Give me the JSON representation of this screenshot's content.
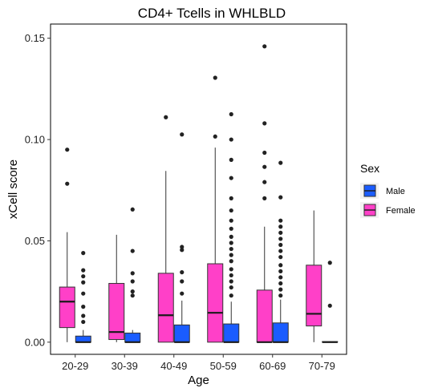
{
  "chart_data": {
    "type": "boxplot",
    "title": "CD4+ Tcells in WHLBLD",
    "xlabel": "Age",
    "ylabel": "xCell score",
    "categories": [
      "20-29",
      "30-39",
      "40-49",
      "50-59",
      "60-69",
      "70-79"
    ],
    "ylim": [
      -0.006,
      0.157
    ],
    "yticks": [
      0.0,
      0.05,
      0.1,
      0.15
    ],
    "ytick_labels": [
      "0.00",
      "0.05",
      "0.10",
      "0.15"
    ],
    "grid": false,
    "legend": {
      "title": "Sex",
      "placement": "right",
      "entries": [
        {
          "label": "Male",
          "color": "#1A5CFF"
        },
        {
          "label": "Female",
          "color": "#FF40C8"
        }
      ]
    },
    "series": [
      {
        "name": "Female",
        "color": "#FF40C8",
        "boxes": [
          {
            "category": "20-29",
            "q1": 0.0072,
            "median": 0.02,
            "q3": 0.0272,
            "whisker_low": 0.0,
            "whisker_high": 0.0543,
            "outliers": [
              0.0782,
              0.095
            ]
          },
          {
            "category": "30-39",
            "q1": 0.0013,
            "median": 0.005,
            "q3": 0.029,
            "whisker_low": 0.0,
            "whisker_high": 0.053,
            "outliers": []
          },
          {
            "category": "40-49",
            "q1": 0.0,
            "median": 0.0133,
            "q3": 0.034,
            "whisker_low": 0.0,
            "whisker_high": 0.0845,
            "outliers": [
              0.111
            ]
          },
          {
            "category": "50-59",
            "q1": 0.0,
            "median": 0.0145,
            "q3": 0.0387,
            "whisker_low": 0.0,
            "whisker_high": 0.096,
            "outliers": [
              0.1015,
              0.1305
            ]
          },
          {
            "category": "60-69",
            "q1": 0.0,
            "median": 0.0,
            "q3": 0.0257,
            "whisker_low": 0.0,
            "whisker_high": 0.057,
            "outliers": [
              0.071,
              0.079,
              0.0865,
              0.0935,
              0.108,
              0.146
            ]
          },
          {
            "category": "70-79",
            "q1": 0.008,
            "median": 0.014,
            "q3": 0.038,
            "whisker_low": 0.0,
            "whisker_high": 0.065,
            "outliers": []
          }
        ]
      },
      {
        "name": "Male",
        "color": "#1A5CFF",
        "boxes": [
          {
            "category": "20-29",
            "q1": 0.0,
            "median": 0.0,
            "q3": 0.003,
            "whisker_low": 0.0,
            "whisker_high": 0.006,
            "outliers": [
              0.01,
              0.013,
              0.0175,
              0.024,
              0.0295,
              0.0325,
              0.0355,
              0.044
            ]
          },
          {
            "category": "30-39",
            "q1": 0.0,
            "median": 0.0,
            "q3": 0.0045,
            "whisker_low": 0.0,
            "whisker_high": 0.006,
            "outliers": [
              0.023,
              0.025,
              0.03,
              0.034,
              0.045,
              0.0655
            ]
          },
          {
            "category": "40-49",
            "q1": 0.0,
            "median": 0.0,
            "q3": 0.0085,
            "whisker_low": 0.0,
            "whisker_high": 0.0205,
            "outliers": [
              0.024,
              0.03,
              0.0345,
              0.0455,
              0.047,
              0.1025
            ]
          },
          {
            "category": "50-59",
            "q1": 0.0,
            "median": 0.0,
            "q3": 0.009,
            "whisker_low": 0.0,
            "whisker_high": 0.02,
            "outliers": [
              0.023,
              0.027,
              0.03,
              0.033,
              0.036,
              0.04,
              0.043,
              0.046,
              0.049,
              0.052,
              0.056,
              0.06,
              0.065,
              0.071,
              0.081,
              0.09,
              0.1,
              0.1125
            ]
          },
          {
            "category": "60-69",
            "q1": 0.0,
            "median": 0.0,
            "q3": 0.0095,
            "whisker_low": 0.0,
            "whisker_high": 0.021,
            "outliers": [
              0.023,
              0.026,
              0.029,
              0.032,
              0.035,
              0.038,
              0.042,
              0.045,
              0.048,
              0.051,
              0.054,
              0.057,
              0.06,
              0.0715,
              0.0885
            ]
          },
          {
            "category": "70-79",
            "q1": 0.0,
            "median": 0.0,
            "q3": 0.0003,
            "whisker_low": 0.0,
            "whisker_high": 0.0005,
            "outliers": [
              0.018,
              0.0392
            ]
          }
        ]
      }
    ]
  }
}
